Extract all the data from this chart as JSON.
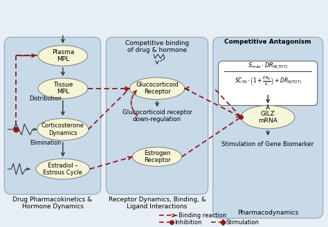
{
  "bg_color": "#dde8f0",
  "panel1_color": "#c5d8e8",
  "panel2_color": "#c5d8e8",
  "panel3_color": "#c5d8e8",
  "node_fill": "#f5f5d8",
  "node_edge": "#888888",
  "arrow_color": "#8b0000",
  "solid_arrow_color": "#333333",
  "title": "",
  "panel1_label": "Drug Pharmacokinetics &\nHormone Dynamics",
  "panel2_label": "Receptor Dynamics, Binding, &\nLigand Interactions",
  "panel3_label": "Pharmacodynamics",
  "nodes_p1": [
    "Plasma\nMPL",
    "Tissue\nMPL",
    "Corticosterone\nDynamics",
    "Estradiol –\nEstrous Cycle"
  ],
  "nodes_p2": [
    "Glucocorticoid\nReceptor",
    "Estrogen\nReceptor"
  ],
  "nodes_p3": [
    "GILZ\nmRNA"
  ],
  "panel1_title": "",
  "panel2_title": "Competitive binding\nof drug & hormone",
  "panel3_title": "Competitive Antagonism",
  "legend_binding": "Binding reaction",
  "legend_inhibition": "Inhibition",
  "legend_stimulation": "Stimulation",
  "formula_num": "S_{max} \\cdot DR_{N(TOT)}",
  "formula_den": "SC_{50} \\cdot \\left(1 + \\frac{ER_N}{K_i}\\right) + DR_{N(TOT)}",
  "label_distribution": "Distribution",
  "label_elimination": "Elimination",
  "label_grdr": "Glucocorticoid receptor\ndown-regulation",
  "label_stim": "Stimulation of Gene Biomarker"
}
